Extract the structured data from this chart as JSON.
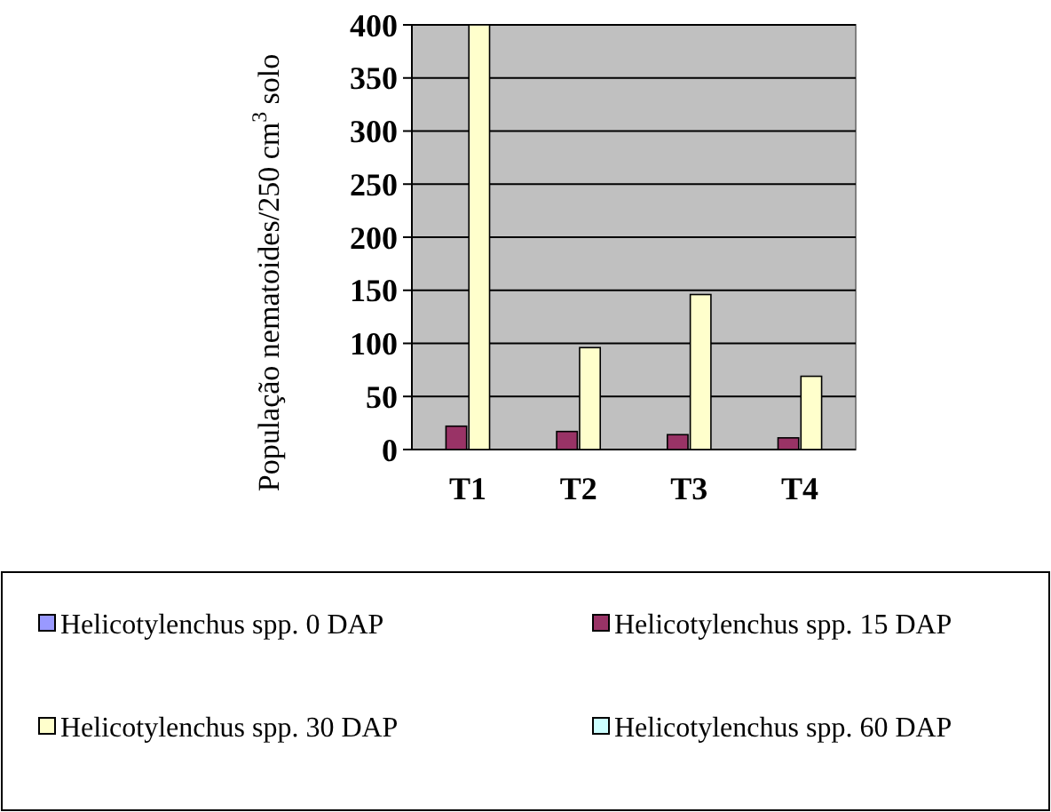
{
  "chart_data": {
    "type": "bar",
    "ylabel": "População nematoides/250 cm$^{3}$ solo",
    "categories": [
      "T1",
      "T2",
      "T3",
      "T4"
    ],
    "series": [
      {
        "name": "Helicotylenchus spp. 0 DAP",
        "color": "#9999ff",
        "values": [
          0,
          0,
          0,
          0
        ]
      },
      {
        "name": "Helicotylenchus spp. 15 DAP",
        "color": "#993366",
        "values": [
          22,
          17,
          14,
          11
        ]
      },
      {
        "name": "Helicotylenchus spp. 30 DAP",
        "color": "#ffffcc",
        "values": [
          400,
          96,
          146,
          69
        ]
      },
      {
        "name": "Helicotylenchus spp. 60 DAP",
        "color": "#ccffff",
        "values": [
          0,
          0,
          0,
          0
        ]
      }
    ],
    "ylim": [
      0,
      400
    ],
    "yticks": [
      0,
      50,
      100,
      150,
      200,
      250,
      300,
      350,
      400
    ],
    "grid": "y",
    "legend": "bottom"
  }
}
